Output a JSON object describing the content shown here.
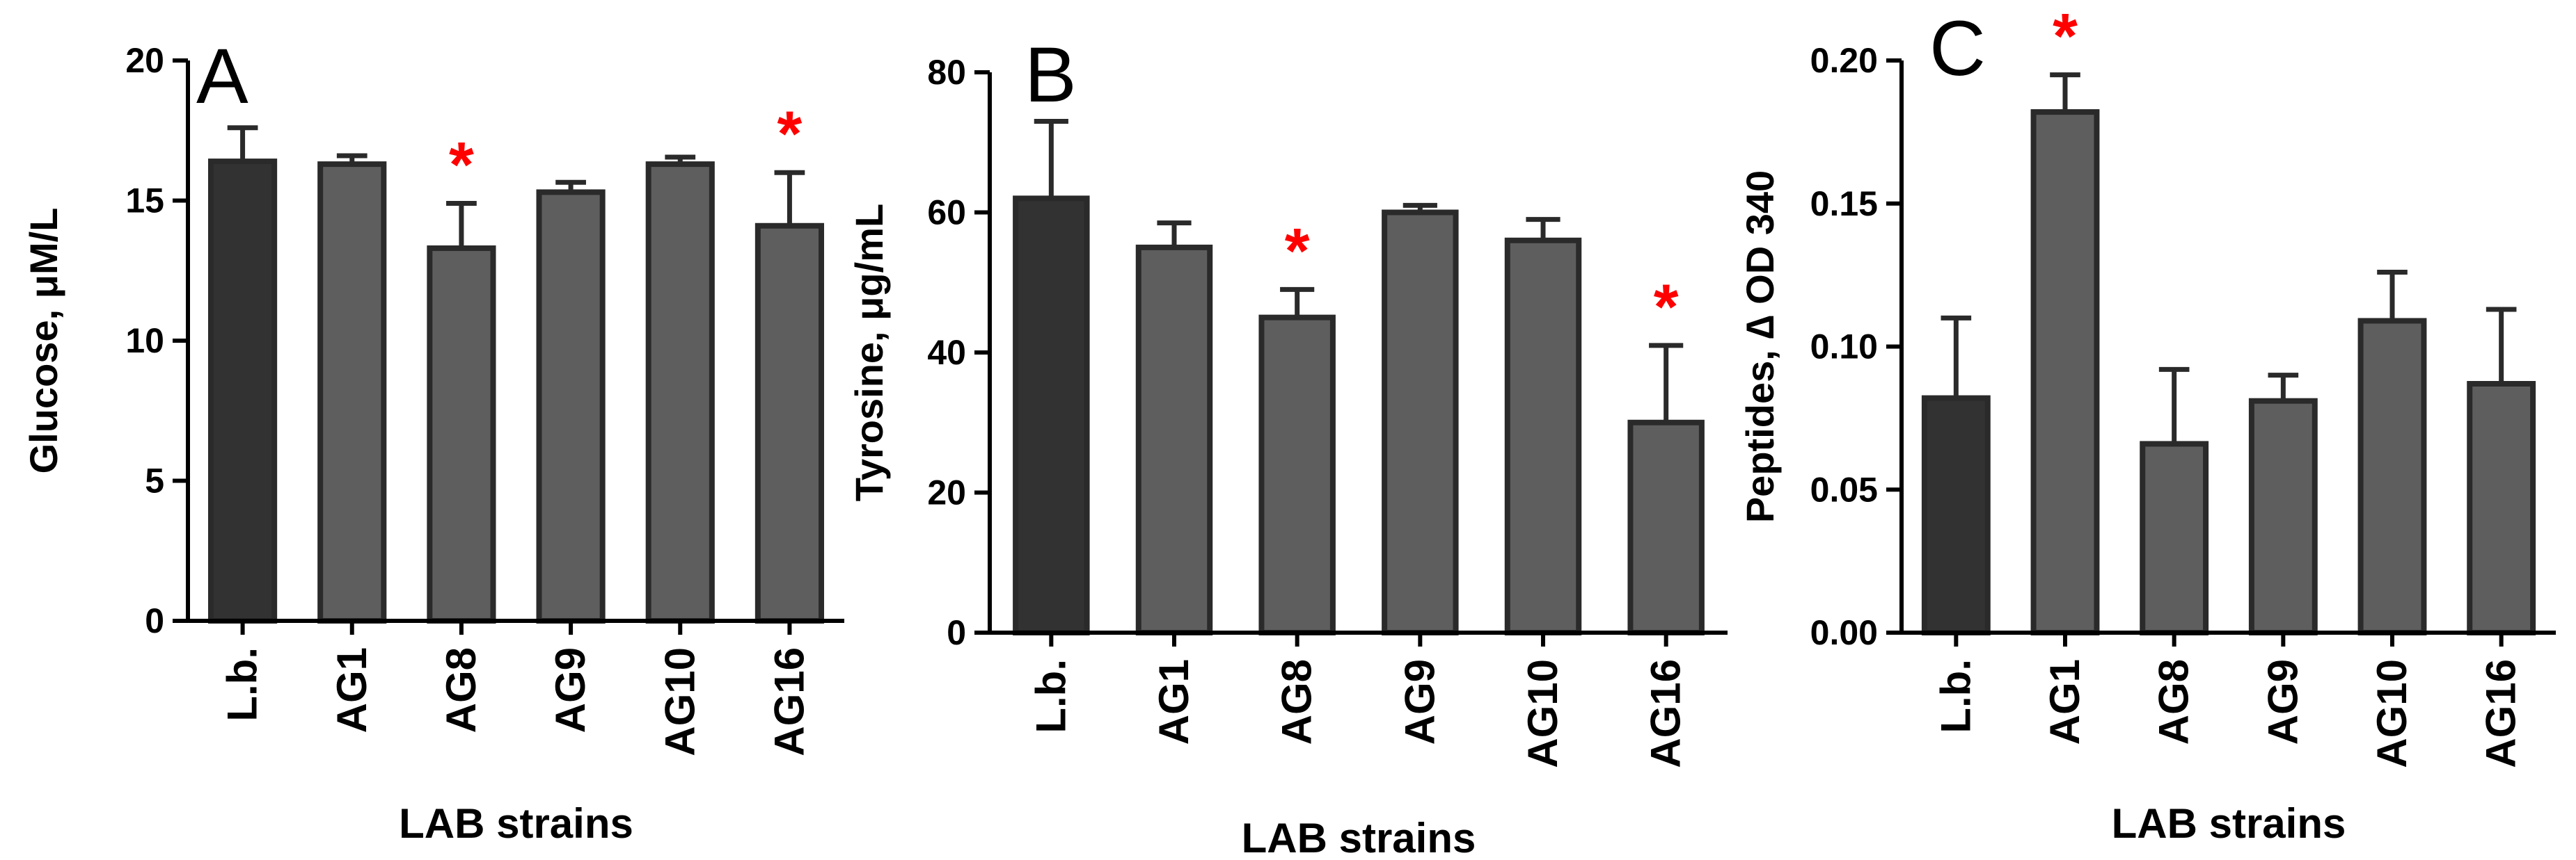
{
  "colors": {
    "reference_bar": "#323232",
    "strain_bar": "#5e5e5e",
    "bar_outline": "#2a2a2a",
    "significance": "#ff0000",
    "axis": "#000000"
  },
  "chart_data": [
    {
      "type": "bar",
      "panel": "A",
      "categories": [
        "L.b.",
        "AG1",
        "AG8",
        "AG9",
        "AG10",
        "AG16"
      ],
      "values": [
        16.4,
        16.3,
        13.3,
        15.3,
        16.3,
        14.1
      ],
      "errors": [
        1.2,
        0.3,
        1.6,
        0.35,
        0.25,
        1.9
      ],
      "significant": [
        false,
        false,
        true,
        false,
        false,
        true
      ],
      "ylabel": "Glucose, μM/L",
      "xlabel": "LAB strains",
      "ylim": [
        0,
        20
      ],
      "yticks": [
        0,
        5,
        10,
        15,
        20
      ],
      "ytick_labels": [
        "0",
        "5",
        "10",
        "15",
        "20"
      ],
      "significance_marker": "*"
    },
    {
      "type": "bar",
      "panel": "B",
      "categories": [
        "L.b.",
        "AG1",
        "AG8",
        "AG9",
        "AG10",
        "AG16"
      ],
      "values": [
        62,
        55,
        45,
        60,
        56,
        30
      ],
      "errors": [
        11,
        3.5,
        4,
        1,
        3,
        11
      ],
      "significant": [
        false,
        false,
        true,
        false,
        false,
        true
      ],
      "ylabel": "Tyrosine, μg/mL",
      "xlabel": "LAB strains",
      "ylim": [
        0,
        80
      ],
      "yticks": [
        0,
        20,
        40,
        60,
        80
      ],
      "ytick_labels": [
        "0",
        "20",
        "40",
        "60",
        "80"
      ],
      "significance_marker": "*"
    },
    {
      "type": "bar",
      "panel": "C",
      "categories": [
        "L.b.",
        "AG1",
        "AG8",
        "AG9",
        "AG10",
        "AG16"
      ],
      "values": [
        0.082,
        0.182,
        0.066,
        0.081,
        0.109,
        0.087
      ],
      "errors": [
        0.028,
        0.013,
        0.026,
        0.009,
        0.017,
        0.026
      ],
      "significant": [
        false,
        true,
        false,
        false,
        false,
        false
      ],
      "ylabel": "Peptides, ∆ OD 340",
      "xlabel": "LAB strains",
      "ylim": [
        0,
        0.2
      ],
      "yticks": [
        0,
        0.05,
        0.1,
        0.15,
        0.2
      ],
      "ytick_labels": [
        "0.00",
        "0.05",
        "0.10",
        "0.15",
        "0.20"
      ],
      "significance_marker": "*"
    }
  ]
}
